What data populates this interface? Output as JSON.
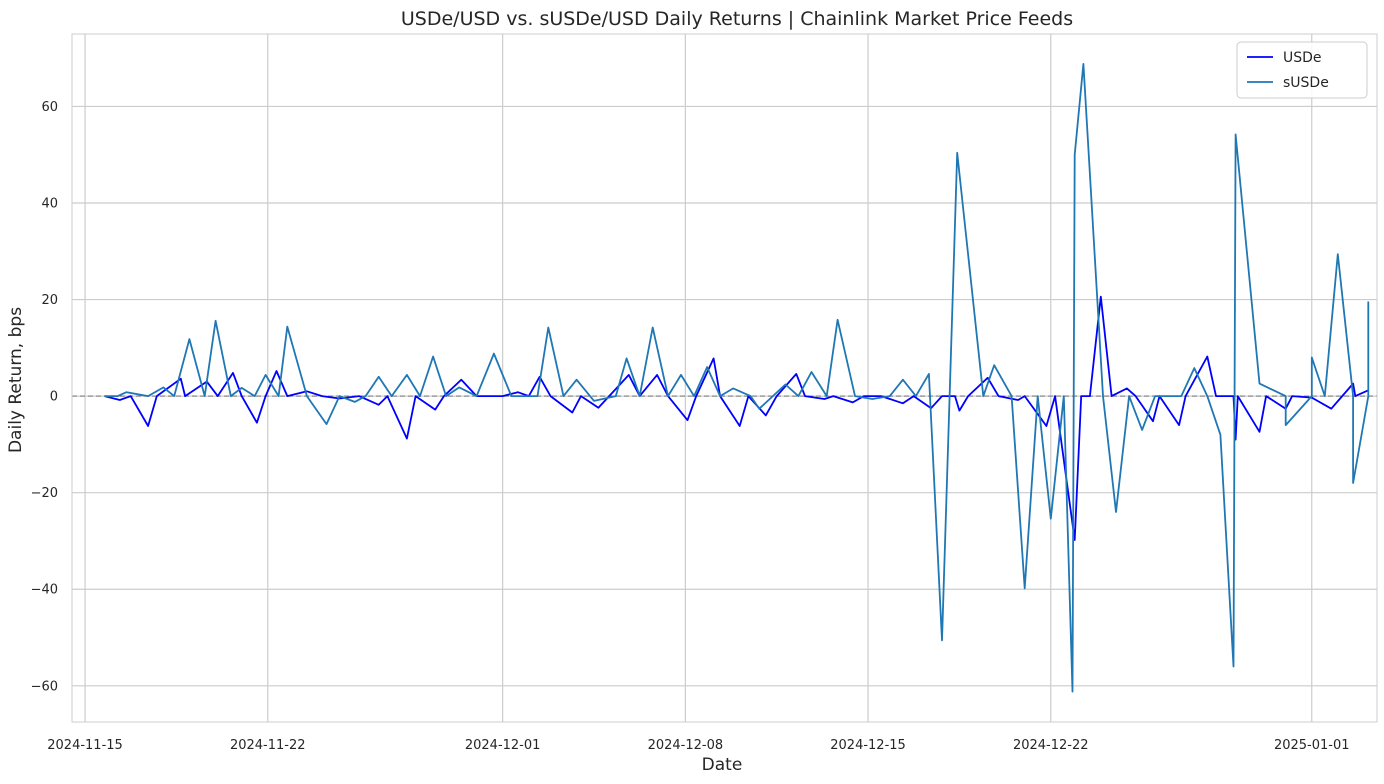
{
  "chart_data": {
    "type": "line",
    "title": "USDe/USD vs. sUSDe/USD Daily Returns | Chainlink Market Price Feeds",
    "xlabel": "Date",
    "ylabel": "Daily Return, bps",
    "x_range": [
      "2024-11-14T12:00",
      "2025-01-03T12:00"
    ],
    "ylim": [
      -67.5,
      75
    ],
    "x_ticks": [
      "2024-11-15",
      "2024-11-22",
      "2024-12-01",
      "2024-12-08",
      "2024-12-15",
      "2024-12-22",
      "2025-01-01"
    ],
    "y_ticks": [
      -60,
      -40,
      -20,
      0,
      20,
      40,
      60
    ],
    "y_tick_labels": [
      "−60",
      "−40",
      "−20",
      "0",
      "20",
      "40",
      "60"
    ],
    "grid": true,
    "zero_line": {
      "y": 0,
      "style": "dashed",
      "color": "#808080"
    },
    "legend": {
      "position": "top-right"
    },
    "series": [
      {
        "name": "USDe",
        "color": "#0000ff",
        "points": [
          [
            "2024-11-15T18:00",
            0.0
          ],
          [
            "2024-11-16T08:00",
            -0.8
          ],
          [
            "2024-11-16T18:00",
            0.0
          ],
          [
            "2024-11-17T10:00",
            -6.2
          ],
          [
            "2024-11-17T18:00",
            0.0
          ],
          [
            "2024-11-18T16:00",
            3.6
          ],
          [
            "2024-11-18T20:00",
            0.0
          ],
          [
            "2024-11-19T16:00",
            3.0
          ],
          [
            "2024-11-20T02:00",
            0.0
          ],
          [
            "2024-11-20T16:00",
            4.8
          ],
          [
            "2024-11-21T00:00",
            0.0
          ],
          [
            "2024-11-21T14:00",
            -5.5
          ],
          [
            "2024-11-21T22:00",
            0.0
          ],
          [
            "2024-11-22T08:00",
            5.2
          ],
          [
            "2024-11-22T18:00",
            0.0
          ],
          [
            "2024-11-23T12:00",
            1.0
          ],
          [
            "2024-11-24T02:00",
            0.0
          ],
          [
            "2024-11-24T18:00",
            -0.5
          ],
          [
            "2024-11-25T12:00",
            0.0
          ],
          [
            "2024-11-26T06:00",
            -1.8
          ],
          [
            "2024-11-26T14:00",
            0.0
          ],
          [
            "2024-11-27T08:00",
            -8.8
          ],
          [
            "2024-11-27T16:00",
            0.0
          ],
          [
            "2024-11-28T10:00",
            -2.8
          ],
          [
            "2024-11-28T18:00",
            0.0
          ],
          [
            "2024-11-29T10:00",
            3.4
          ],
          [
            "2024-11-30T00:00",
            0.0
          ],
          [
            "2024-12-01T00:00",
            0.0
          ],
          [
            "2024-12-01T14:00",
            0.8
          ],
          [
            "2024-12-02T00:00",
            0.0
          ],
          [
            "2024-12-02T10:00",
            4.0
          ],
          [
            "2024-12-02T20:00",
            0.0
          ],
          [
            "2024-12-03T16:00",
            -3.4
          ],
          [
            "2024-12-04T00:00",
            0.0
          ],
          [
            "2024-12-04T16:00",
            -2.4
          ],
          [
            "2024-12-05T02:00",
            0.0
          ],
          [
            "2024-12-05T20:00",
            4.4
          ],
          [
            "2024-12-06T06:00",
            0.0
          ],
          [
            "2024-12-06T22:00",
            4.4
          ],
          [
            "2024-12-07T08:00",
            0.0
          ],
          [
            "2024-12-08T02:00",
            -5.0
          ],
          [
            "2024-12-08T10:00",
            0.0
          ],
          [
            "2024-12-09T02:00",
            7.8
          ],
          [
            "2024-12-09T08:00",
            0.0
          ],
          [
            "2024-12-10T02:00",
            -6.2
          ],
          [
            "2024-12-10T10:00",
            0.0
          ],
          [
            "2024-12-11T02:00",
            -4.0
          ],
          [
            "2024-12-11T12:00",
            0.0
          ],
          [
            "2024-12-12T06:00",
            4.6
          ],
          [
            "2024-12-12T14:00",
            0.0
          ],
          [
            "2024-12-13T08:00",
            -0.6
          ],
          [
            "2024-12-13T16:00",
            0.0
          ],
          [
            "2024-12-14T10:00",
            -1.3
          ],
          [
            "2024-12-14T20:00",
            0.0
          ],
          [
            "2024-12-15T12:00",
            0.0
          ],
          [
            "2024-12-16T08:00",
            -1.5
          ],
          [
            "2024-12-16T18:00",
            0.0
          ],
          [
            "2024-12-17T10:00",
            -2.5
          ],
          [
            "2024-12-17T20:00",
            0.0
          ],
          [
            "2024-12-18T08:00",
            0.0
          ],
          [
            "2024-12-18T12:00",
            -3.0
          ],
          [
            "2024-12-18T20:00",
            0.0
          ],
          [
            "2024-12-19T14:00",
            3.8
          ],
          [
            "2024-12-20T00:00",
            0.0
          ],
          [
            "2024-12-20T18:00",
            -0.8
          ],
          [
            "2024-12-21T00:00",
            0.0
          ],
          [
            "2024-12-21T20:00",
            -6.2
          ],
          [
            "2024-12-22T04:00",
            0.0
          ],
          [
            "2024-12-22T22:00",
            -29.8
          ],
          [
            "2024-12-23T04:00",
            0.0
          ],
          [
            "2024-12-23T12:00",
            0.0
          ],
          [
            "2024-12-23T22:00",
            20.6
          ],
          [
            "2024-12-24T08:00",
            0.0
          ],
          [
            "2024-12-24T22:00",
            1.6
          ],
          [
            "2024-12-25T06:00",
            0.0
          ],
          [
            "2024-12-25T22:00",
            -5.2
          ],
          [
            "2024-12-26T04:00",
            0.0
          ],
          [
            "2024-12-26T22:00",
            -6.0
          ],
          [
            "2024-12-27T04:00",
            0.0
          ],
          [
            "2024-12-28T00:00",
            8.2
          ],
          [
            "2024-12-28T08:00",
            0.0
          ],
          [
            "2024-12-29T00:00",
            0.0
          ],
          [
            "2024-12-29T02:00",
            -9.0
          ],
          [
            "2024-12-29T04:00",
            0.0
          ],
          [
            "2024-12-30T00:00",
            -7.4
          ],
          [
            "2024-12-30T06:00",
            0.0
          ],
          [
            "2024-12-31T00:00",
            -2.6
          ],
          [
            "2024-12-31T06:00",
            0.0
          ],
          [
            "2025-01-01T00:00",
            -0.3
          ],
          [
            "2025-01-01T18:00",
            -2.6
          ],
          [
            "2025-01-02T04:00",
            0.0
          ],
          [
            "2025-01-02T14:00",
            2.6
          ],
          [
            "2025-01-02T16:00",
            0.0
          ],
          [
            "2025-01-03T04:00",
            1.2
          ]
        ]
      },
      {
        "name": "sUSDe",
        "color": "#1f77b4",
        "points": [
          [
            "2024-11-15T18:00",
            0.0
          ],
          [
            "2024-11-16T06:00",
            0.0
          ],
          [
            "2024-11-16T14:00",
            0.8
          ],
          [
            "2024-11-17T10:00",
            0.0
          ],
          [
            "2024-11-18T00:00",
            1.8
          ],
          [
            "2024-11-18T10:00",
            0.0
          ],
          [
            "2024-11-19T00:00",
            11.8
          ],
          [
            "2024-11-19T14:00",
            0.0
          ],
          [
            "2024-11-20T00:00",
            15.6
          ],
          [
            "2024-11-20T14:00",
            0.0
          ],
          [
            "2024-11-21T00:00",
            1.7
          ],
          [
            "2024-11-21T12:00",
            0.0
          ],
          [
            "2024-11-21T22:00",
            4.4
          ],
          [
            "2024-11-22T10:00",
            0.0
          ],
          [
            "2024-11-22T18:00",
            14.4
          ],
          [
            "2024-11-23T12:00",
            0.0
          ],
          [
            "2024-11-24T06:00",
            -5.8
          ],
          [
            "2024-11-24T18:00",
            0.0
          ],
          [
            "2024-11-25T08:00",
            -1.2
          ],
          [
            "2024-11-25T18:00",
            0.0
          ],
          [
            "2024-11-26T06:00",
            4.0
          ],
          [
            "2024-11-26T18:00",
            0.0
          ],
          [
            "2024-11-27T08:00",
            4.4
          ],
          [
            "2024-11-27T20:00",
            0.0
          ],
          [
            "2024-11-28T08:00",
            8.2
          ],
          [
            "2024-11-28T20:00",
            0.0
          ],
          [
            "2024-11-29T08:00",
            1.8
          ],
          [
            "2024-11-30T00:00",
            0.0
          ],
          [
            "2024-11-30T16:00",
            8.8
          ],
          [
            "2024-12-01T08:00",
            0.0
          ],
          [
            "2024-12-02T08:00",
            0.0
          ],
          [
            "2024-12-02T18:00",
            14.2
          ],
          [
            "2024-12-03T08:00",
            0.0
          ],
          [
            "2024-12-03T20:00",
            3.4
          ],
          [
            "2024-12-04T12:00",
            -1.0
          ],
          [
            "2024-12-05T08:00",
            0.0
          ],
          [
            "2024-12-05T18:00",
            7.8
          ],
          [
            "2024-12-06T06:00",
            0.0
          ],
          [
            "2024-12-06T18:00",
            14.2
          ],
          [
            "2024-12-07T08:00",
            0.0
          ],
          [
            "2024-12-07T20:00",
            4.4
          ],
          [
            "2024-12-08T08:00",
            0.0
          ],
          [
            "2024-12-08T20:00",
            6.0
          ],
          [
            "2024-12-09T08:00",
            0.0
          ],
          [
            "2024-12-09T20:00",
            1.6
          ],
          [
            "2024-12-10T12:00",
            0.0
          ],
          [
            "2024-12-10T20:00",
            -2.6
          ],
          [
            "2024-12-11T20:00",
            2.4
          ],
          [
            "2024-12-12T08:00",
            0.0
          ],
          [
            "2024-12-12T20:00",
            5.0
          ],
          [
            "2024-12-13T10:00",
            0.0
          ],
          [
            "2024-12-13T20:00",
            15.8
          ],
          [
            "2024-12-14T12:00",
            0.0
          ],
          [
            "2024-12-15T04:00",
            -0.6
          ],
          [
            "2024-12-15T20:00",
            0.0
          ],
          [
            "2024-12-16T08:00",
            3.4
          ],
          [
            "2024-12-16T20:00",
            0.0
          ],
          [
            "2024-12-17T08:00",
            4.6
          ],
          [
            "2024-12-17T20:00",
            -50.6
          ],
          [
            "2024-12-18T10:00",
            50.4
          ],
          [
            "2024-12-19T10:00",
            0.0
          ],
          [
            "2024-12-19T20:00",
            6.4
          ],
          [
            "2024-12-20T12:00",
            0.0
          ],
          [
            "2024-12-21T00:00",
            -39.8
          ],
          [
            "2024-12-21T12:00",
            0.0
          ],
          [
            "2024-12-22T00:00",
            -25.4
          ],
          [
            "2024-12-22T12:00",
            0.0
          ],
          [
            "2024-12-22T20:00",
            -61.2
          ],
          [
            "2024-12-22T22:00",
            50.0
          ],
          [
            "2024-12-23T06:00",
            68.8
          ],
          [
            "2024-12-24T00:00",
            0.0
          ],
          [
            "2024-12-24T12:00",
            -24.0
          ],
          [
            "2024-12-25T00:00",
            0.0
          ],
          [
            "2024-12-25T12:00",
            -7.0
          ],
          [
            "2024-12-26T00:00",
            0.0
          ],
          [
            "2024-12-27T00:00",
            0.0
          ],
          [
            "2024-12-27T12:00",
            5.8
          ],
          [
            "2024-12-28T00:00",
            0.0
          ],
          [
            "2024-12-28T12:00",
            -8.0
          ],
          [
            "2024-12-29T00:00",
            -56.0
          ],
          [
            "2024-12-29T02:00",
            54.2
          ],
          [
            "2024-12-30T00:00",
            2.6
          ],
          [
            "2024-12-31T00:00",
            0.0
          ],
          [
            "2024-12-31T00:00",
            -6.0
          ],
          [
            "2025-01-01T00:00",
            0.0
          ],
          [
            "2025-01-01T00:00",
            8.0
          ],
          [
            "2025-01-01T12:00",
            0.0
          ],
          [
            "2025-01-02T00:00",
            29.4
          ],
          [
            "2025-01-02T14:00",
            0.0
          ],
          [
            "2025-01-02T14:00",
            -18.0
          ],
          [
            "2025-01-03T04:00",
            0.0
          ],
          [
            "2025-01-03T04:00",
            19.6
          ]
        ]
      }
    ]
  }
}
